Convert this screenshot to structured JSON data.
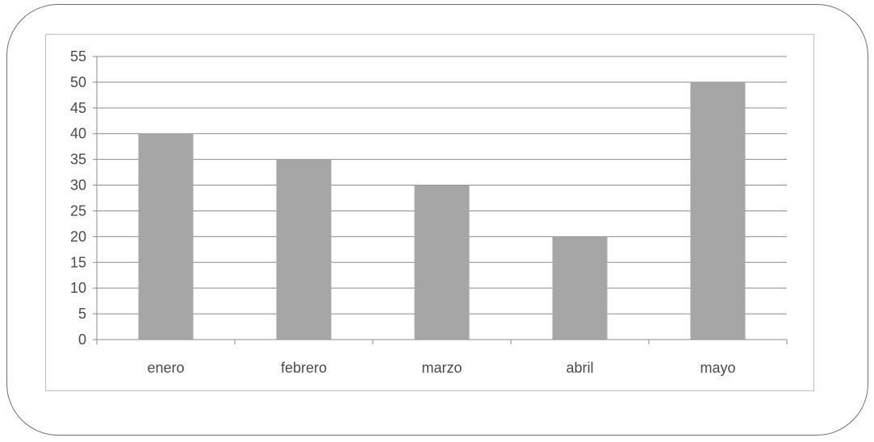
{
  "chart_data": {
    "type": "bar",
    "categories": [
      "enero",
      "febrero",
      "marzo",
      "abril",
      "mayo"
    ],
    "values": [
      40,
      35,
      30,
      20,
      50
    ],
    "title": "",
    "xlabel": "",
    "ylabel": "",
    "ylim": [
      0,
      55
    ],
    "yticks": [
      "0",
      "5",
      "10",
      "15",
      "20",
      "25",
      "30",
      "35",
      "40",
      "45",
      "50",
      "55"
    ],
    "grid": true,
    "legend": "none",
    "bar_color": "#a6a6a6",
    "grid_color": "#8c8c8c"
  }
}
